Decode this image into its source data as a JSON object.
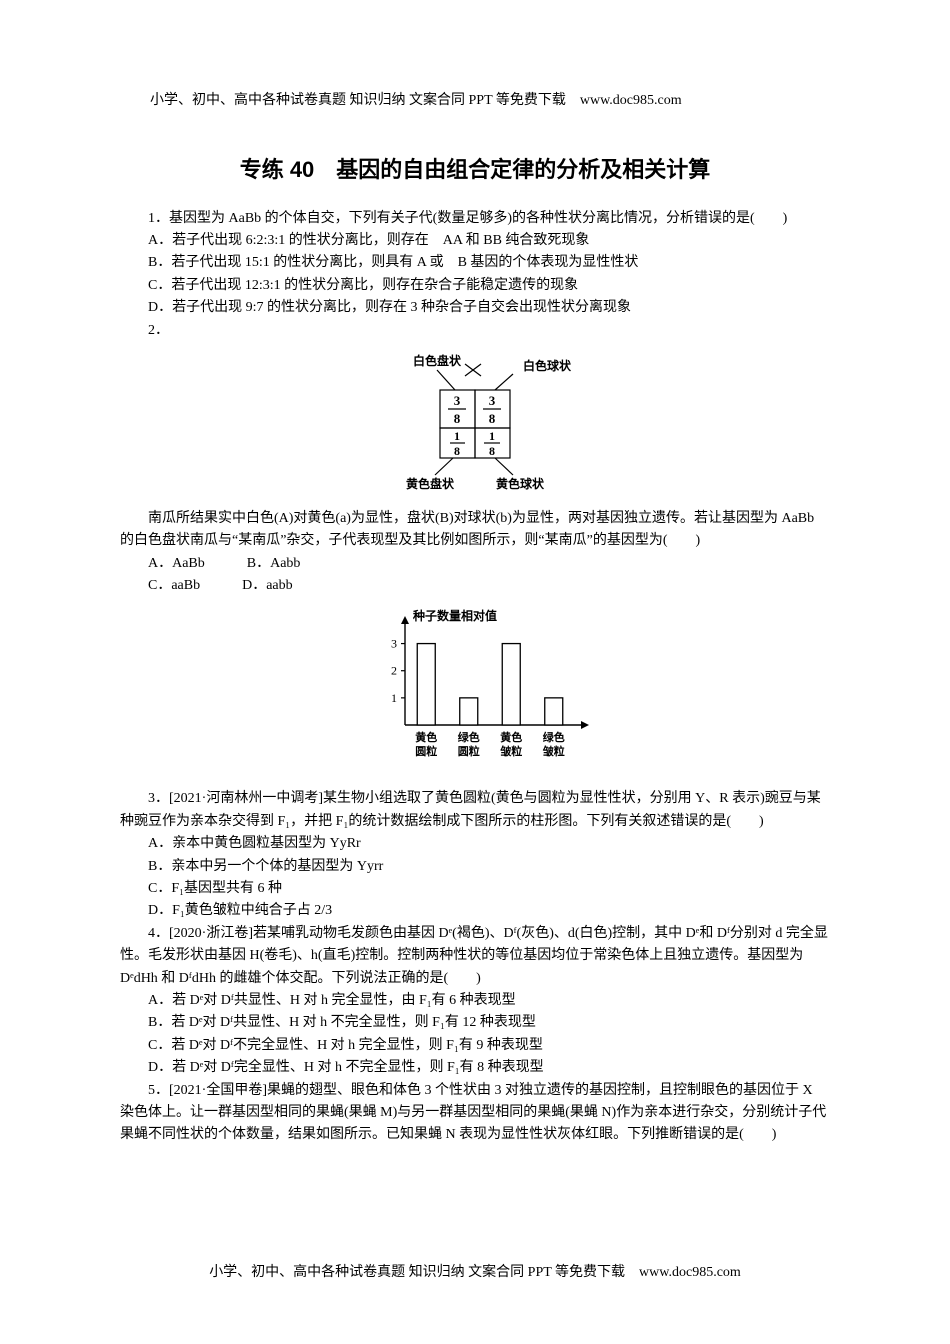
{
  "header": "小学、初中、高中各种试卷真题 知识归纳 文案合同 PPT 等免费下载　www.doc985.com",
  "footer": "小学、初中、高中各种试卷真题 知识归纳 文案合同 PPT 等免费下载　www.doc985.com",
  "title": "专练 40　基因的自由组合定律的分析及相关计算",
  "q1": {
    "stem": "1．基因型为 AaBb 的个体自交，下列有关子代(数量足够多)的各种性状分离比情况，分析错误的是(　　)",
    "A": "A．若子代出现 6:2:3:1 的性状分离比，则存在　AA 和 BB 纯合致死现象",
    "B": "B．若子代出现 15:1 的性状分离比，则具有 A 或　B 基因的个体表现为显性性状",
    "C": "C．若子代出现 12:3:1 的性状分离比，则存在杂合子能稳定遗传的现象",
    "D": "D．若子代出现 9:7 的性状分离比，则存在 3 种杂合子自交会出现性状分离现象"
  },
  "q2_label": "2．",
  "punnett": {
    "parentL": "白色盘状",
    "parentR": "白色球状",
    "tl": "⅜",
    "tr": "⅜",
    "bl": "⅛",
    "br": "⅛",
    "tl_num": "3",
    "tr_num": "3",
    "bl_num": "1",
    "br_num": "1",
    "den": "8",
    "childL": "黄色盘状",
    "childR": "黄色球状"
  },
  "q2": {
    "stem": "南瓜所结果实中白色(A)对黄色(a)为显性，盘状(B)对球状(b)为显性，两对基因独立遗传。若让基因型为 AaBb 的白色盘状南瓜与“某南瓜”杂交，子代表现型及其比例如图所示，则“某南瓜”的基因型为(　　)",
    "A": "A．AaBb　　　B．Aabb",
    "C": "C．aaBb　　　D．aabb"
  },
  "barChart": {
    "yLabel": "种子数量相对值",
    "xLabels": [
      "黄色圆粒",
      "绿色圆粒",
      "黄色皱粒",
      "绿色皱粒"
    ],
    "values": [
      3,
      1,
      3,
      1
    ],
    "yTicks": [
      1,
      2,
      3
    ],
    "barFill": "#ffffff",
    "barStroke": "#000000",
    "axisColor": "#000000",
    "bg": "#ffffff"
  },
  "q3": {
    "stem": "3．[2021·河南林州一中调考]某生物小组选取了黄色圆粒(黄色与圆粒为显性性状，分别用 Y、R 表示)豌豆与某种豌豆作为亲本杂交得到 F₁，并把 F₁的统计数据绘制成下图所示的柱形图。下列有关叙述错误的是(　　)",
    "A": "A．亲本中黄色圆粒基因型为 YyRr",
    "B": "B．亲本中另一个个体的基因型为 Yyrr",
    "C": "C．F₁基因型共有 6 种",
    "D": "D．F₁黄色皱粒中纯合子占 2/3"
  },
  "q4": {
    "stem": "4．[2020·浙江卷]若某哺乳动物毛发颜色由基因 Dᵉ(褐色)、Dᶠ(灰色)、d(白色)控制，其中 Dᵉ和 Dᶠ分别对 d 完全显性。毛发形状由基因 H(卷毛)、h(直毛)控制。控制两种性状的等位基因均位于常染色体上且独立遗传。基因型为 DᵉdHh 和 DᶠdHh 的雌雄个体交配。下列说法正确的是(　　)",
    "A": "A．若 Dᵉ对 Dᶠ共显性、H 对 h 完全显性，由 F₁有 6 种表现型",
    "B": "B．若 Dᵉ对 Dᶠ共显性、H 对 h 不完全显性，则 F₁有 12 种表现型",
    "C": "C．若 Dᵉ对 Dᶠ不完全显性、H 对 h 完全显性，则 F₁有 9 种表现型",
    "D": "D．若 Dᵉ对 Dᶠ完全显性、H 对 h 不完全显性，则 F₁有 8 种表现型"
  },
  "q5": {
    "stem": "5．[2021·全国甲卷]果蝇的翅型、眼色和体色 3 个性状由 3 对独立遗传的基因控制，且控制眼色的基因位于 X 染色体上。让一群基因型相同的果蝇(果蝇 M)与另一群基因型相同的果蝇(果蝇 N)作为亲本进行杂交，分别统计子代果蝇不同性状的个体数量，结果如图所示。已知果蝇 N 表现为显性性状灰体红眼。下列推断错误的是(　　)"
  }
}
